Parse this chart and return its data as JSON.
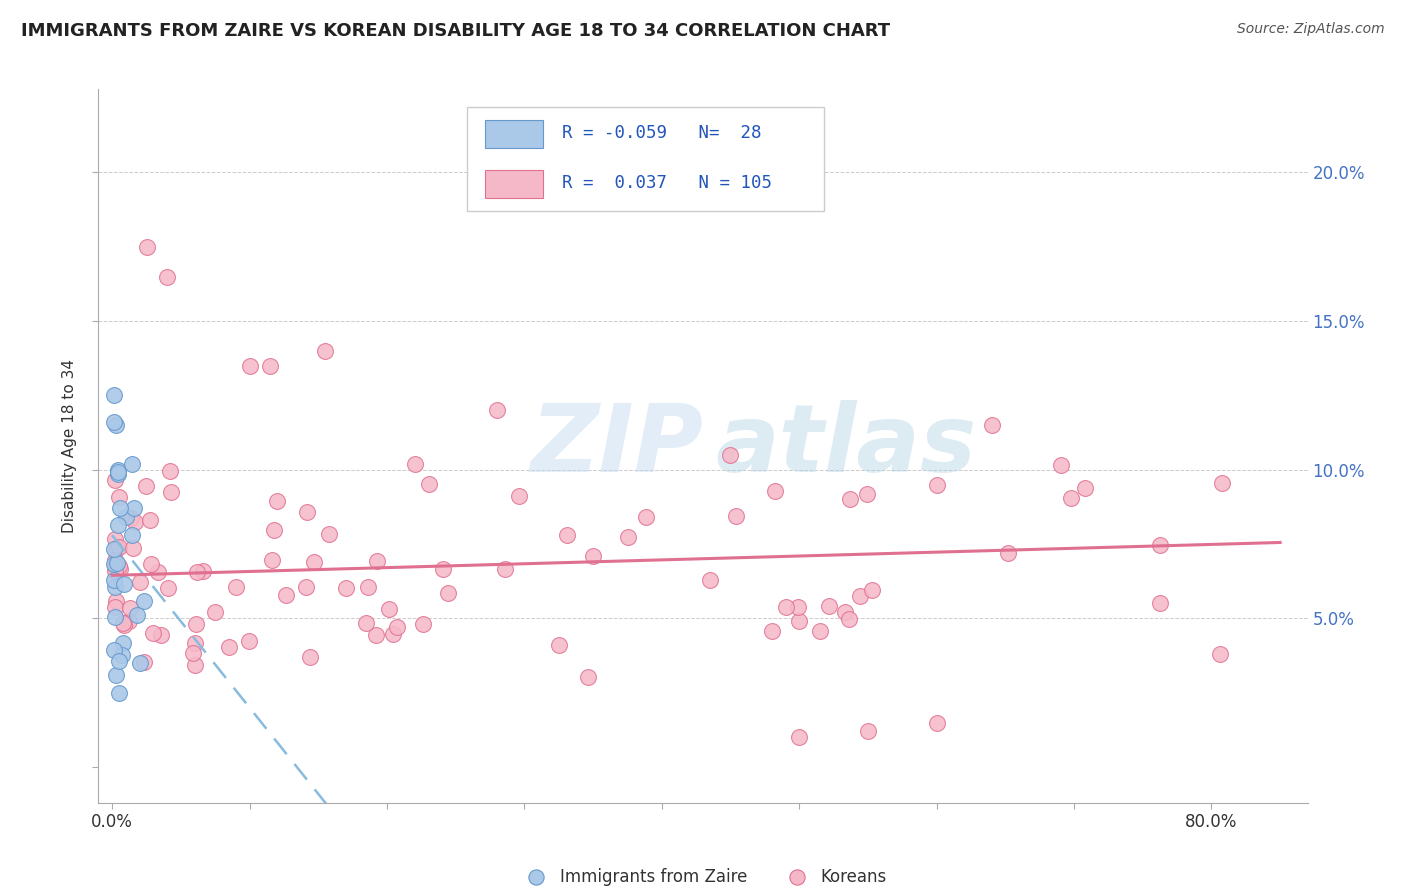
{
  "title": "IMMIGRANTS FROM ZAIRE VS KOREAN DISABILITY AGE 18 TO 34 CORRELATION CHART",
  "source": "Source: ZipAtlas.com",
  "ylabel": "Disability Age 18 to 34",
  "xlim": [
    -0.01,
    0.87
  ],
  "ylim": [
    -0.012,
    0.228
  ],
  "legend_r_zaire": "-0.059",
  "legend_n_zaire": "28",
  "legend_r_korean": "0.037",
  "legend_n_korean": "105",
  "legend_label_zaire": "Immigrants from Zaire",
  "legend_label_korean": "Koreans",
  "zaire_fill": "#aac8e8",
  "zaire_edge": "#6699cc",
  "korean_fill": "#f5b8c8",
  "korean_edge": "#e07090",
  "trendline_zaire": "#88bbdd",
  "trendline_korean": "#e07090",
  "bg_color": "#ffffff",
  "grid_color": "#cccccc",
  "title_color": "#222222",
  "source_color": "#555555",
  "axis_label_color": "#333333",
  "right_tick_color": "#4472c4",
  "legend_text_color": "#2255bb",
  "zaire_intercept": 0.078,
  "zaire_slope": -0.58,
  "korean_intercept": 0.0645,
  "korean_slope": 0.013
}
